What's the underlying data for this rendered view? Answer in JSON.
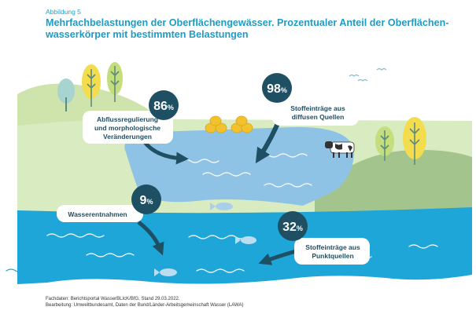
{
  "header": {
    "figure_label": "Abbildung 5",
    "title_line1": "Mehrfachbelastungen der Oberflächengewässer. Prozentualer Anteil der Oberflächen-",
    "title_line2": "wasserkörper mit bestimmten Belastungen"
  },
  "callouts": [
    {
      "id": "abfluss",
      "value": "86",
      "unit": "%",
      "label_lines": [
        "Abflussregulierung",
        "und morphologische",
        "Veränderungen"
      ]
    },
    {
      "id": "diffus",
      "value": "98",
      "unit": "%",
      "label_lines": [
        "Stoffeinträge aus",
        "diffusen Quellen"
      ]
    },
    {
      "id": "entnahme",
      "value": "9",
      "unit": "%",
      "label_lines": [
        "Wasserentnahmen"
      ]
    },
    {
      "id": "punkt",
      "value": "32",
      "unit": "%",
      "label_lines": [
        "Stoffeinträge aus",
        "Punktquellen"
      ]
    }
  ],
  "footer": {
    "line1": "Fachdaten: Berichtsportal WasserBLIcK/BfG, Stand 29.03.2022.",
    "line2": "Bearbeitung: Umweltbundesamt, Daten der Bund/Länder-Arbeitsgemeinschaft Wasser (LAWA)"
  },
  "colors": {
    "title": "#1f9cc4",
    "sea": "#1fa6d8",
    "lake": "#8fc3e6",
    "land": "#d4e6b4",
    "hill": "#c2dc9a",
    "green_hill": "#9fc08a",
    "dark_badge": "#1f4f63",
    "fish": "#a9cfe8"
  }
}
